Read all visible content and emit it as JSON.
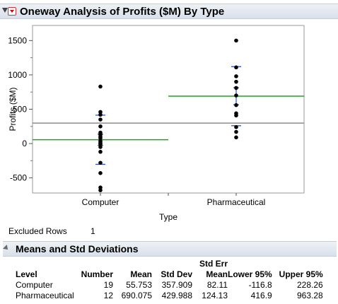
{
  "report_title": "Oneway Analysis of Profits ($M) By Type",
  "excluded_rows": {
    "label": "Excluded Rows",
    "value": "1"
  },
  "means_section_title": "Means and Std Deviations",
  "stats_table": {
    "headers": [
      {
        "line1": "",
        "line2": "Level"
      },
      {
        "line1": "",
        "line2": "Number"
      },
      {
        "line1": "",
        "line2": "Mean"
      },
      {
        "line1": "",
        "line2": "Std Dev"
      },
      {
        "line1": "Std Err",
        "line2": "Mean"
      },
      {
        "line1": "",
        "line2": "Lower 95%"
      },
      {
        "line1": "",
        "line2": "Upper 95%"
      }
    ],
    "rows": [
      [
        "Computer",
        "19",
        "55.753",
        "357.909",
        "82.11",
        "-116.8",
        "228.26"
      ],
      [
        "Pharmaceutical",
        "12",
        "690.075",
        "429.988",
        "124.13",
        "416.9",
        "963.28"
      ]
    ]
  },
  "chart_data": {
    "type": "scatter",
    "xlabel": "Type",
    "ylabel": "Profits ($M)",
    "categories": [
      "Computer",
      "Pharmaceutical"
    ],
    "ylim": [
      -720,
      1720
    ],
    "yticks": [
      -500,
      0,
      500,
      1000,
      1500
    ],
    "grand_mean": 298,
    "grid": false,
    "colors": {
      "point": "#000000",
      "mean_line": "#1fa31f",
      "grand_mean_line": "#8c8c8c",
      "std_bars": "#2a4fd6"
    },
    "groups": [
      {
        "name": "Computer",
        "mean": 55.753,
        "std_dev": 357.909,
        "std_err": 82.11,
        "points": [
          830,
          460,
          420,
          350,
          250,
          160,
          130,
          100,
          80,
          40,
          20,
          0,
          -10,
          -50,
          -120,
          -280,
          -430,
          -640,
          -680
        ]
      },
      {
        "name": "Pharmaceutical",
        "mean": 690.075,
        "std_dev": 429.988,
        "std_err": 124.13,
        "points": [
          1500,
          1110,
          980,
          900,
          810,
          700,
          560,
          440,
          410,
          240,
          170,
          90
        ]
      }
    ]
  }
}
